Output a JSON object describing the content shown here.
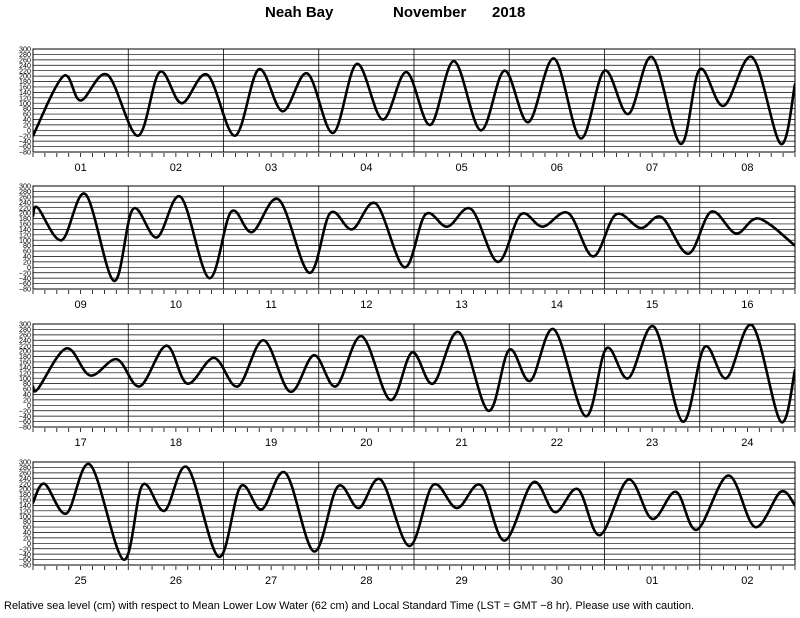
{
  "title": {
    "location": "Neah Bay",
    "month": "November",
    "year": "2018"
  },
  "caption": "Relative sea level (cm) with respect to Mean Lower Low Water (62 cm) and Local Standard Time (LST = GMT −8 hr). Please use with caution.",
  "colors": {
    "line": "#000000",
    "grid": "#000000",
    "background": "#ffffff"
  },
  "chart_data": {
    "type": "line",
    "xlabel": "",
    "ylabel": "",
    "ylim": [
      -80,
      300
    ],
    "yticks": [
      -80,
      -60,
      -40,
      -20,
      0,
      20,
      40,
      60,
      80,
      100,
      120,
      140,
      160,
      180,
      200,
      220,
      240,
      260,
      280,
      300
    ],
    "y_tick_labels": [
      "−80",
      "−60",
      "−40",
      "−20",
      "0",
      "20",
      "40",
      "60",
      "80",
      "100",
      "120",
      "140",
      "160",
      "180",
      "200",
      "220",
      "240",
      "260",
      "280",
      "300"
    ],
    "grid": true,
    "x_unit": "day",
    "panels": [
      {
        "days": [
          "01",
          "02",
          "03",
          "04",
          "05",
          "06",
          "07",
          "08"
        ],
        "series": [
          {
            "points": [
              [
                0.0,
                -20
              ],
              [
                0.32,
                200
              ],
              [
                0.5,
                110
              ],
              [
                0.78,
                205
              ],
              [
                1.1,
                -20
              ],
              [
                1.33,
                215
              ],
              [
                1.56,
                100
              ],
              [
                1.83,
                205
              ],
              [
                2.12,
                -20
              ],
              [
                2.37,
                225
              ],
              [
                2.62,
                70
              ],
              [
                2.88,
                210
              ],
              [
                3.15,
                -10
              ],
              [
                3.4,
                245
              ],
              [
                3.67,
                40
              ],
              [
                3.92,
                215
              ],
              [
                4.17,
                20
              ],
              [
                4.42,
                255
              ],
              [
                4.7,
                0
              ],
              [
                4.95,
                220
              ],
              [
                5.2,
                30
              ],
              [
                5.47,
                265
              ],
              [
                5.75,
                -30
              ],
              [
                6.0,
                220
              ],
              [
                6.25,
                60
              ],
              [
                6.5,
                270
              ],
              [
                6.8,
                -50
              ],
              [
                7.0,
                225
              ],
              [
                7.25,
                90
              ],
              [
                7.55,
                270
              ],
              [
                7.85,
                -50
              ],
              [
                8.0,
                170
              ]
            ]
          }
        ]
      },
      {
        "days": [
          "09",
          "10",
          "11",
          "12",
          "13",
          "14",
          "15",
          "16"
        ],
        "series": [
          {
            "points": [
              [
                0.0,
                190
              ],
              [
                0.05,
                220
              ],
              [
                0.3,
                100
              ],
              [
                0.55,
                270
              ],
              [
                0.85,
                -50
              ],
              [
                1.05,
                215
              ],
              [
                1.3,
                110
              ],
              [
                1.55,
                260
              ],
              [
                1.85,
                -40
              ],
              [
                2.08,
                205
              ],
              [
                2.3,
                130
              ],
              [
                2.58,
                250
              ],
              [
                2.9,
                -20
              ],
              [
                3.12,
                200
              ],
              [
                3.35,
                140
              ],
              [
                3.6,
                235
              ],
              [
                3.9,
                0
              ],
              [
                4.12,
                195
              ],
              [
                4.35,
                150
              ],
              [
                4.6,
                215
              ],
              [
                4.88,
                20
              ],
              [
                5.12,
                195
              ],
              [
                5.35,
                150
              ],
              [
                5.62,
                200
              ],
              [
                5.88,
                40
              ],
              [
                6.12,
                195
              ],
              [
                6.38,
                145
              ],
              [
                6.6,
                185
              ],
              [
                6.88,
                50
              ],
              [
                7.12,
                205
              ],
              [
                7.38,
                125
              ],
              [
                7.62,
                180
              ],
              [
                8.0,
                80
              ]
            ]
          }
        ]
      },
      {
        "days": [
          "17",
          "18",
          "19",
          "20",
          "21",
          "22",
          "23",
          "24"
        ],
        "series": [
          {
            "points": [
              [
                0.0,
                70
              ],
              [
                0.05,
                60
              ],
              [
                0.35,
                210
              ],
              [
                0.6,
                110
              ],
              [
                0.88,
                170
              ],
              [
                1.12,
                70
              ],
              [
                1.4,
                220
              ],
              [
                1.62,
                80
              ],
              [
                1.9,
                175
              ],
              [
                2.15,
                70
              ],
              [
                2.42,
                240
              ],
              [
                2.7,
                50
              ],
              [
                2.95,
                185
              ],
              [
                3.18,
                70
              ],
              [
                3.45,
                255
              ],
              [
                3.75,
                20
              ],
              [
                3.98,
                195
              ],
              [
                4.2,
                80
              ],
              [
                4.47,
                270
              ],
              [
                4.78,
                -20
              ],
              [
                5.0,
                205
              ],
              [
                5.22,
                90
              ],
              [
                5.47,
                280
              ],
              [
                5.8,
                -40
              ],
              [
                6.02,
                210
              ],
              [
                6.25,
                100
              ],
              [
                6.52,
                290
              ],
              [
                6.82,
                -60
              ],
              [
                7.05,
                215
              ],
              [
                7.28,
                100
              ],
              [
                7.55,
                295
              ],
              [
                7.85,
                -60
              ],
              [
                8.0,
                130
              ]
            ]
          }
        ]
      },
      {
        "days": [
          "25",
          "26",
          "27",
          "28",
          "29",
          "30",
          "01",
          "02"
        ],
        "series": [
          {
            "points": [
              [
                0.0,
                150
              ],
              [
                0.12,
                220
              ],
              [
                0.35,
                110
              ],
              [
                0.6,
                290
              ],
              [
                0.95,
                -60
              ],
              [
                1.15,
                215
              ],
              [
                1.38,
                120
              ],
              [
                1.62,
                280
              ],
              [
                1.95,
                -50
              ],
              [
                2.18,
                210
              ],
              [
                2.4,
                125
              ],
              [
                2.65,
                260
              ],
              [
                2.95,
                -30
              ],
              [
                3.2,
                210
              ],
              [
                3.42,
                130
              ],
              [
                3.65,
                235
              ],
              [
                3.95,
                -10
              ],
              [
                4.2,
                215
              ],
              [
                4.45,
                130
              ],
              [
                4.7,
                215
              ],
              [
                4.95,
                10
              ],
              [
                5.25,
                225
              ],
              [
                5.48,
                115
              ],
              [
                5.72,
                200
              ],
              [
                5.95,
                30
              ],
              [
                6.25,
                235
              ],
              [
                6.5,
                90
              ],
              [
                6.75,
                190
              ],
              [
                6.97,
                50
              ],
              [
                7.3,
                250
              ],
              [
                7.58,
                60
              ],
              [
                7.85,
                190
              ],
              [
                8.0,
                140
              ]
            ]
          }
        ]
      }
    ]
  }
}
